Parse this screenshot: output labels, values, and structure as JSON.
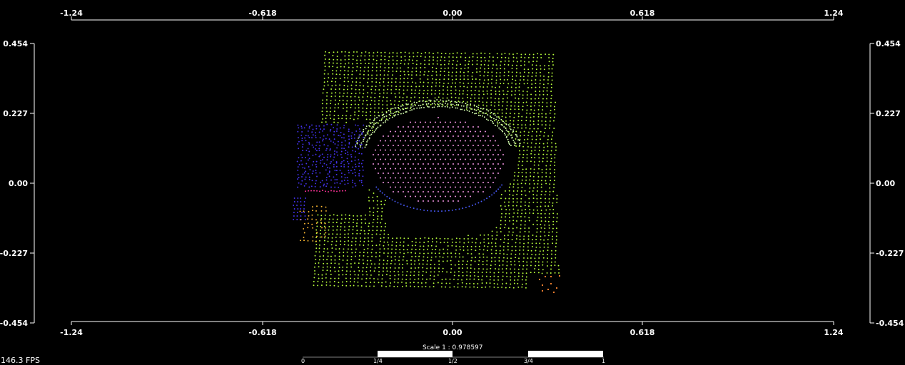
{
  "viewer": {
    "fps_text": "146.3 FPS",
    "scale_text": "Scale 1 : 0.978597",
    "scale_ticks": [
      "0",
      "1/4",
      "1/2",
      "3/4",
      "1"
    ],
    "background_color": "#000000",
    "axis_color": "#ffffff"
  },
  "axes": {
    "x_ticks": [
      "-1.24",
      "-0.618",
      "0.00",
      "0.618",
      "1.24"
    ],
    "y_ticks": [
      "0.454",
      "0.227",
      "0.00",
      "-0.227",
      "-0.454"
    ],
    "x_range": [
      -1.24,
      1.24
    ],
    "y_range": [
      -0.454,
      0.454
    ]
  },
  "colors": {
    "floor": "#b8ff3c",
    "disc": "#ff9cf0",
    "disc_edge_top": "#d6ffb0",
    "disc_edge_bottom": "#4a5cff",
    "object_left": "#4433ee",
    "object_left_accent": "#ff3399",
    "small_object": "#ffbb33",
    "corner_object": "#ff8833"
  },
  "chart_data": {
    "type": "scatter",
    "title": "",
    "xlabel": "",
    "ylabel": "",
    "xlim": [
      -1.24,
      1.24
    ],
    "ylim": [
      -0.454,
      0.454
    ],
    "grid": false,
    "regions": [
      {
        "name": "floor",
        "color": "#b8ff3c",
        "x": [
          -0.41,
          0.36
        ],
        "y": [
          -0.34,
          0.43
        ]
      },
      {
        "name": "disc",
        "color": "#ff9cf0",
        "center": [
          -0.02,
          0.03
        ],
        "radius_x": 0.22,
        "radius_y": 0.14
      },
      {
        "name": "object-left",
        "color": "#4433ee",
        "x": [
          -0.48,
          -0.28
        ],
        "y": [
          -0.02,
          0.19
        ]
      },
      {
        "name": "small-object",
        "color": "#ffbb33",
        "x": [
          -0.46,
          -0.39
        ],
        "y": [
          -0.2,
          -0.07
        ]
      },
      {
        "name": "corner-object",
        "color": "#ff8833",
        "x": [
          0.29,
          0.37
        ],
        "y": [
          -0.36,
          -0.3
        ]
      }
    ]
  }
}
